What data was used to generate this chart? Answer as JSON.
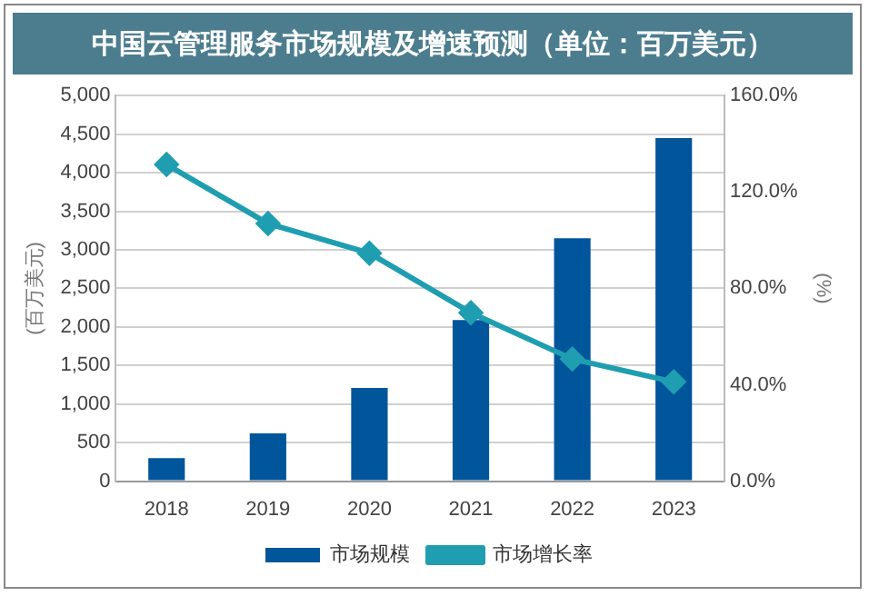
{
  "chart_data": {
    "type": "bar",
    "title": "中国云管理服务市场规模及增速预测（单位：百万美元）",
    "ylabel": "(百万美元)",
    "y2label": "(%)",
    "categories": [
      "2018",
      "2019",
      "2020",
      "2021",
      "2022",
      "2023"
    ],
    "series": [
      {
        "name": "市场规模",
        "color": "#00559b",
        "values": [
          300,
          620,
          1210,
          2090,
          3150,
          4450
        ]
      },
      {
        "name": "市场增长率",
        "type": "line",
        "axis": "y2",
        "color": "#1e9eb0",
        "values": [
          131.4,
          106.9,
          94.6,
          69.9,
          50.7,
          41.2
        ]
      }
    ],
    "ylim": [
      0,
      5000
    ],
    "yticks": [
      {
        "value": 0,
        "label": "0"
      },
      {
        "value": 500,
        "label": "500"
      },
      {
        "value": 1000,
        "label": "1,000"
      },
      {
        "value": 1500,
        "label": "1,500"
      },
      {
        "value": 2000,
        "label": "2,000"
      },
      {
        "value": 2500,
        "label": "2,500"
      },
      {
        "value": 3000,
        "label": "3,000"
      },
      {
        "value": 3500,
        "label": "3,500"
      },
      {
        "value": 4000,
        "label": "4,000"
      },
      {
        "value": 4500,
        "label": "4,500"
      },
      {
        "value": 5000,
        "label": "5,000"
      }
    ],
    "y2lim": [
      0,
      160
    ],
    "y2ticks": [
      {
        "value": 0,
        "label": "0.0%"
      },
      {
        "value": 40,
        "label": "40.0%"
      },
      {
        "value": 80,
        "label": "80.0%"
      },
      {
        "value": 120,
        "label": "120.0%"
      },
      {
        "value": 160,
        "label": "160.0%"
      }
    ],
    "grid": "y",
    "legend": "bottom",
    "marker": "diamond",
    "line_style": "solid"
  }
}
